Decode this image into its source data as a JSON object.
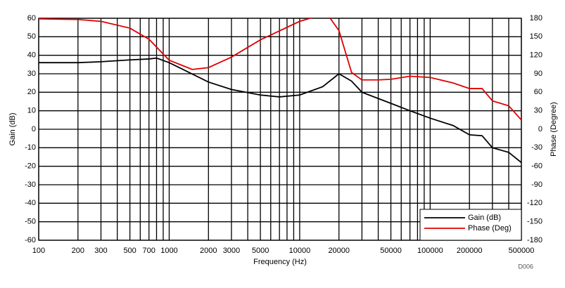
{
  "chart_data": {
    "type": "line",
    "x_label": "Frequency (Hz)",
    "y_label": "Gain (dB)",
    "y2_label": "Phase (Degree)",
    "note": "D006",
    "xscale": "log",
    "xlim": [
      100,
      500000
    ],
    "xticks": [
      100,
      200,
      300,
      500,
      700,
      1000,
      2000,
      3000,
      5000,
      10000,
      20000,
      50000,
      100000,
      200000,
      500000
    ],
    "xgrid": [
      100,
      200,
      300,
      400,
      500,
      600,
      700,
      800,
      900,
      1000,
      2000,
      3000,
      4000,
      5000,
      6000,
      7000,
      8000,
      9000,
      10000,
      20000,
      30000,
      40000,
      50000,
      60000,
      70000,
      80000,
      90000,
      100000,
      200000,
      300000,
      400000,
      500000
    ],
    "ylim": [
      -60,
      60
    ],
    "yticks": [
      -60,
      -50,
      -40,
      -30,
      -20,
      -10,
      0,
      10,
      20,
      30,
      40,
      50,
      60
    ],
    "y2lim": [
      -180,
      180
    ],
    "y2ticks": [
      -180,
      -150,
      -120,
      -90,
      -60,
      -30,
      0,
      30,
      60,
      90,
      120,
      150,
      180
    ],
    "grid": true,
    "legend": "lower right",
    "series": [
      {
        "name": "Gain (dB)",
        "color": "#000000",
        "x": [
          100,
          200,
          300,
          500,
          700,
          800,
          1000,
          2000,
          3000,
          5000,
          7000,
          10000,
          15000,
          20000,
          25000,
          30000,
          50000,
          70000,
          100000,
          150000,
          200000,
          250000,
          300000,
          400000,
          500000
        ],
        "values": [
          36,
          36,
          36.5,
          37.5,
          38,
          38.5,
          36,
          25.5,
          21.5,
          18.5,
          17.5,
          18.5,
          23,
          30,
          26,
          20,
          14,
          10,
          6,
          2,
          -3,
          -3.5,
          -10,
          -12.5,
          -18
        ]
      },
      {
        "name": "Phase (Deg)",
        "color": "#e00000",
        "axis": "y2",
        "x": [
          100,
          200,
          300,
          500,
          700,
          1000,
          1500,
          2000,
          3000,
          5000,
          10000,
          12000,
          15000,
          17000,
          20000,
          25000,
          30000,
          40000,
          50000,
          70000,
          100000,
          150000,
          200000,
          250000,
          300000,
          400000,
          500000
        ],
        "values": [
          179,
          178,
          175,
          164,
          146,
          112,
          97,
          100,
          117,
          145,
          175,
          180,
          184,
          181,
          160,
          92,
          80,
          80,
          81,
          86,
          84,
          75,
          66,
          66,
          46,
          38,
          15
        ]
      }
    ]
  }
}
